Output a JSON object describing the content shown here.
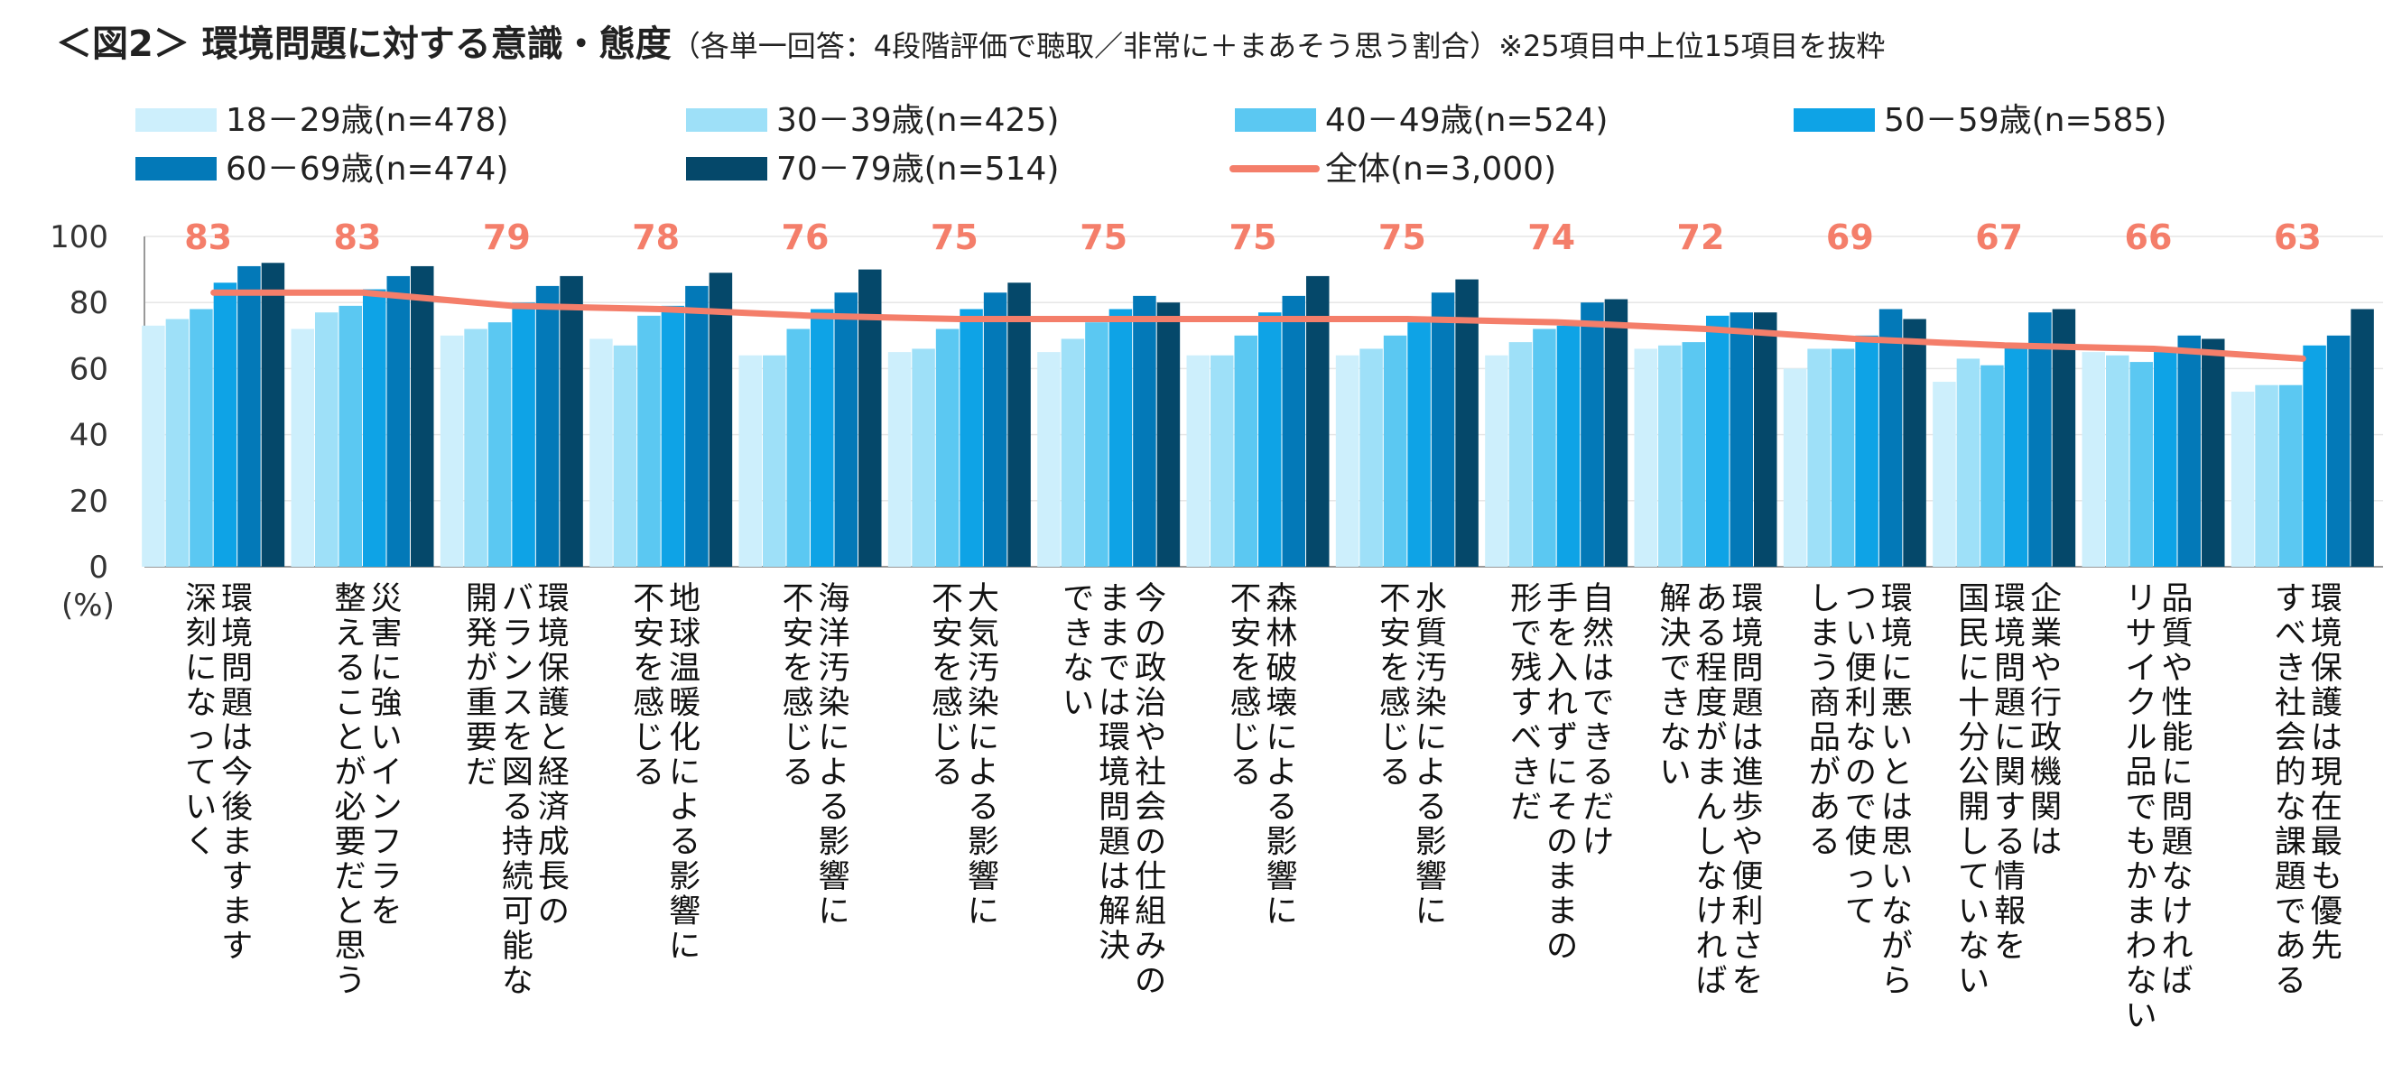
{
  "title": {
    "main": "＜図2＞ 環境問題に対する意識・態度",
    "sub": "（各単一回答：4段階評価で聴取／非常に＋まあそう思う割合）※25項目中上位15項目を抜粋"
  },
  "chart_data": {
    "type": "bar",
    "unit_label": "(%)",
    "ylim": [
      0,
      100
    ],
    "yticks": [
      "0",
      "20",
      "40",
      "60",
      "80",
      "100"
    ],
    "legend_placement": "top",
    "categories": [
      "環境問題は今後ますます深刻になっていく",
      "災害に強いインフラを整えることが必要だと思う",
      "環境保護と経済成長のバランスを図る持続可能な開発が重要だ",
      "地球温暖化による影響に不安を感じる",
      "海洋汚染による影響に不安を感じる",
      "大気汚染による影響に不安を感じる",
      "今の政治や社会の仕組みのままでは環境問題は解決できない",
      "森林破壊による影響に不安を感じる",
      "水質汚染による影響に不安を感じる",
      "自然はできるだけ手を入れずにそのままの形で残すべきだ",
      "環境問題は進歩や便利さをある程度がまんしなければ解決できない",
      "環境に悪いとは思いながらつい便利なので使ってしまう商品がある",
      "企業や行政機関は環境問題に関する情報を国民に十分公開していない",
      "品質や性能に問題なければリサイクル品でもかまわない",
      "環境保護は現在最も優先すべき社会的な課題である"
    ],
    "category_lines": [
      [
        "環境問題は今後ますます",
        "深刻になっていく"
      ],
      [
        "災害に強いインフラを",
        "整えることが必要だと思う"
      ],
      [
        "環境保護と経済成長の",
        "バランスを図る持続可能な",
        "開発が重要だ"
      ],
      [
        "地球温暖化による影響に",
        "不安を感じる"
      ],
      [
        "海洋汚染による影響に",
        "不安を感じる"
      ],
      [
        "大気汚染による影響に",
        "不安を感じる"
      ],
      [
        "今の政治や社会の仕組みの",
        "ままでは環境問題は解決",
        "できない"
      ],
      [
        "森林破壊による影響に",
        "不安を感じる"
      ],
      [
        "水質汚染による影響に",
        "不安を感じる"
      ],
      [
        "自然はできるだけ",
        "手を入れずにそのままの",
        "形で残すべきだ"
      ],
      [
        "環境問題は進歩や便利さを",
        "ある程度がまんしなければ",
        "解決できない"
      ],
      [
        "環境に悪いとは思いながら",
        "つい便利なので使って",
        "しまう商品がある"
      ],
      [
        "企業や行政機関は",
        "環境問題に関する情報を",
        "国民に十分公開していない"
      ],
      [
        "品質や性能に問題なければ",
        "リサイクル品でもかまわない"
      ],
      [
        "環境保護は現在最も優先",
        "すべき社会的な課題である"
      ]
    ],
    "series": [
      {
        "name": "18－29歳(n=478)",
        "color": "#CDEFFC",
        "values": [
          73,
          72,
          70,
          69,
          64,
          65,
          65,
          64,
          64,
          64,
          66,
          60,
          56,
          65,
          53
        ]
      },
      {
        "name": "30－39歳(n=425)",
        "color": "#9EE0F8",
        "values": [
          75,
          77,
          72,
          67,
          64,
          66,
          69,
          64,
          66,
          68,
          67,
          66,
          63,
          64,
          55
        ]
      },
      {
        "name": "40－49歳(n=524)",
        "color": "#5BC8F2",
        "values": [
          78,
          79,
          74,
          76,
          72,
          72,
          74,
          70,
          70,
          72,
          68,
          66,
          61,
          62,
          55
        ]
      },
      {
        "name": "50－59歳(n=585)",
        "color": "#0EA3E6",
        "values": [
          86,
          84,
          80,
          79,
          78,
          78,
          78,
          77,
          74,
          73,
          76,
          70,
          67,
          65,
          67
        ]
      },
      {
        "name": "60－69歳(n=474)",
        "color": "#0379B8",
        "values": [
          91,
          88,
          85,
          85,
          83,
          83,
          82,
          82,
          83,
          80,
          77,
          78,
          77,
          70,
          70
        ]
      },
      {
        "name": "70－79歳(n=514)",
        "color": "#05486A",
        "values": [
          92,
          91,
          88,
          89,
          90,
          86,
          80,
          88,
          87,
          81,
          77,
          75,
          78,
          69,
          78
        ]
      }
    ],
    "line_series": {
      "name": "全体(n=3,000)",
      "color": "#F47E6A",
      "values": [
        83,
        83,
        79,
        78,
        76,
        75,
        75,
        75,
        75,
        74,
        72,
        69,
        67,
        66,
        63
      ],
      "labels": [
        "83",
        "83",
        "79",
        "78",
        "76",
        "75",
        "75",
        "75",
        "75",
        "74",
        "72",
        "69",
        "67",
        "66",
        "63"
      ]
    }
  }
}
